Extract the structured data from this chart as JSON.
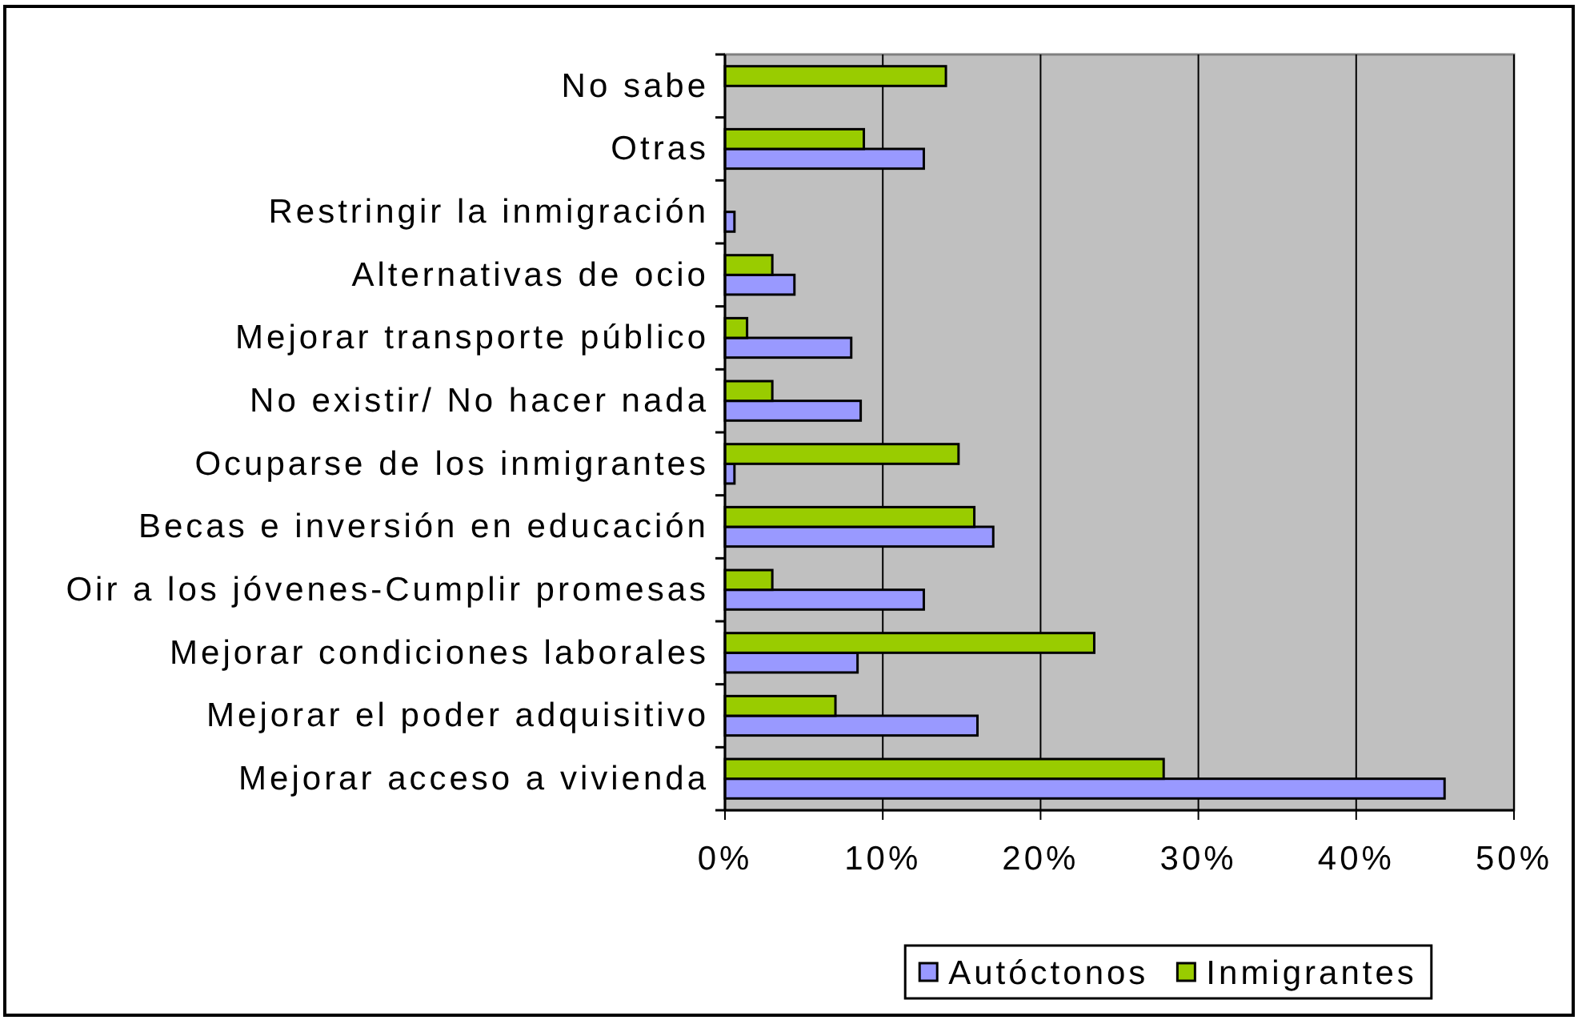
{
  "chart_data": {
    "type": "bar",
    "orientation": "horizontal",
    "categories": [
      "No sabe",
      "Otras",
      "Restringir la inmigración",
      "Alternativas de ocio",
      "Mejorar transporte público",
      "No existir/ No hacer nada",
      "Ocuparse de los inmigrantes",
      "Becas e inversión en educación",
      "Oir a los jóvenes-Cumplir promesas",
      "Mejorar condiciones laborales",
      "Mejorar el poder adquisitivo",
      "Mejorar acceso a vivienda"
    ],
    "series": [
      {
        "name": "Autóctonos",
        "color": "#9999ff",
        "values": [
          null,
          12.6,
          0.6,
          4.4,
          8.0,
          8.6,
          0.6,
          17.0,
          12.6,
          8.4,
          16.0,
          45.6
        ]
      },
      {
        "name": "Inmigrantes",
        "color": "#99cc00",
        "values": [
          14.0,
          8.8,
          null,
          3.0,
          1.4,
          3.0,
          14.8,
          15.8,
          3.0,
          23.4,
          7.0,
          27.8
        ]
      }
    ],
    "xlim": [
      0,
      50
    ],
    "xticks": [
      {
        "value": 0,
        "label": "0%"
      },
      {
        "value": 10,
        "label": "10%"
      },
      {
        "value": 20,
        "label": "20%"
      },
      {
        "value": 30,
        "label": "30%"
      },
      {
        "value": 40,
        "label": "40%"
      },
      {
        "value": 50,
        "label": "50%"
      }
    ],
    "grid": "x",
    "legend": "bottom"
  }
}
